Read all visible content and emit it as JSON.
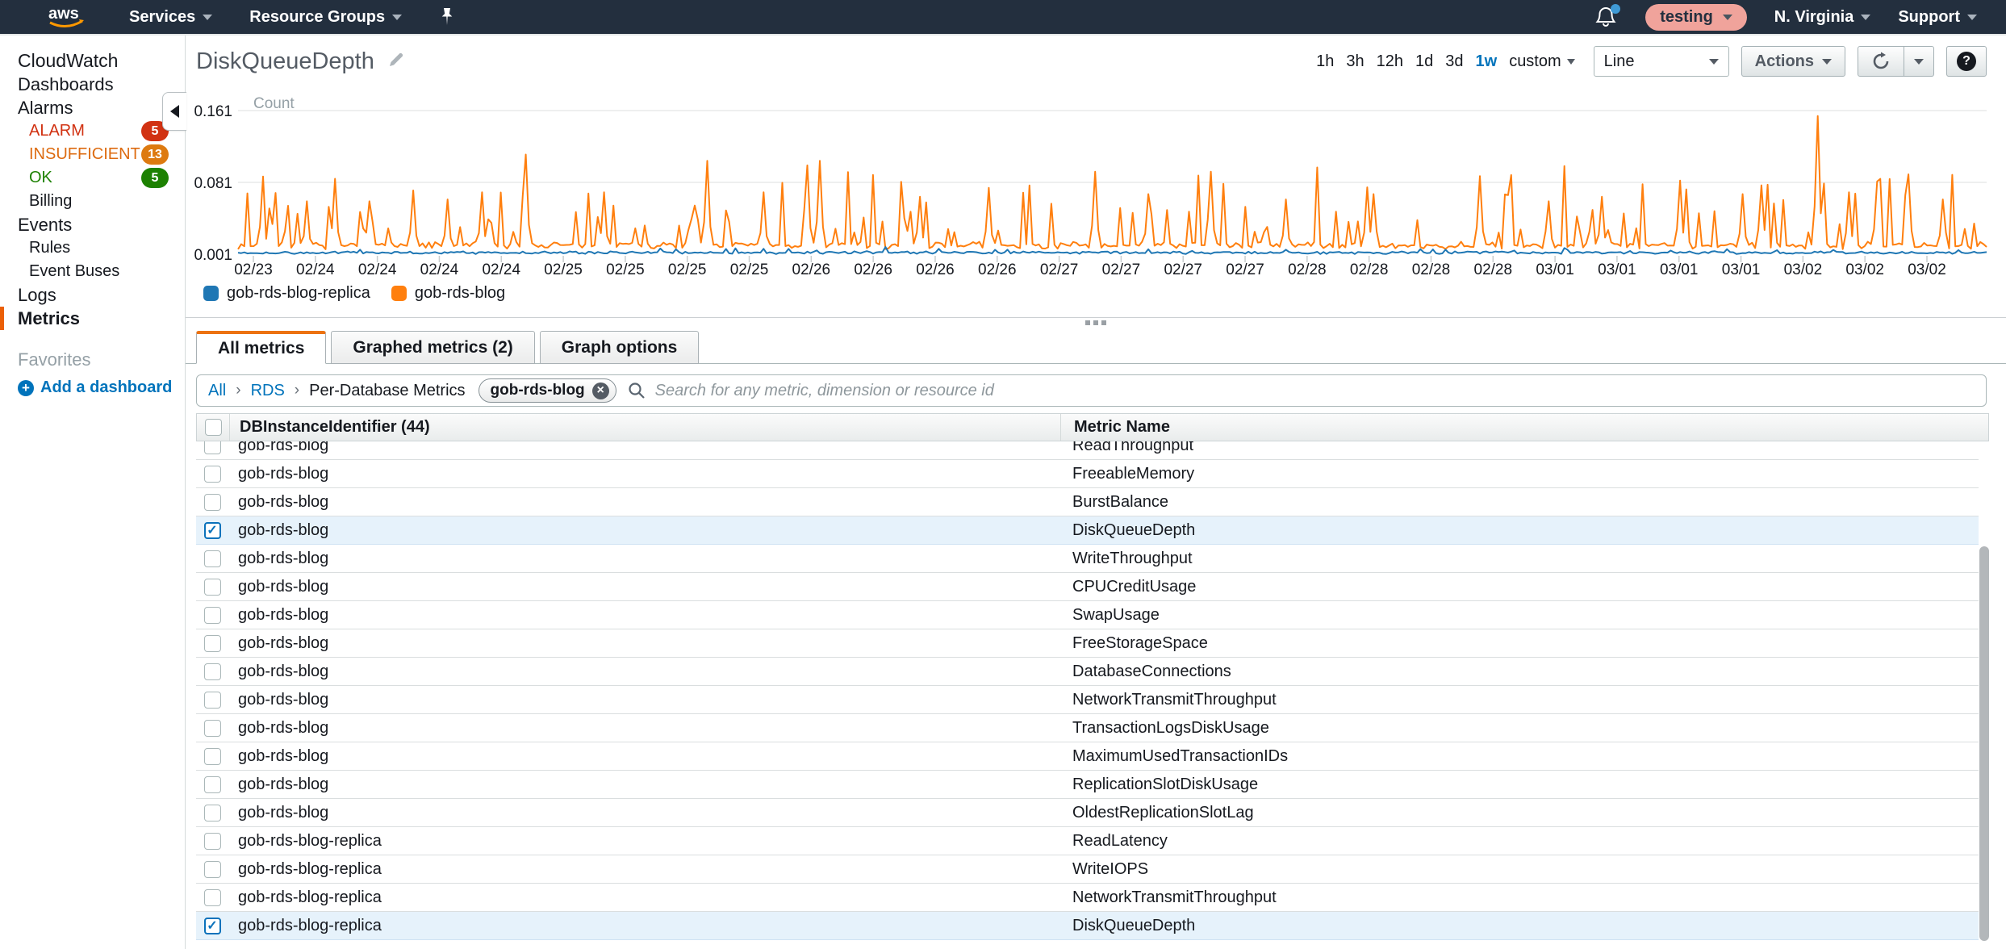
{
  "topnav": {
    "logo": "aws",
    "items": [
      {
        "label": "Services"
      },
      {
        "label": "Resource Groups"
      }
    ],
    "session_label": "testing",
    "region": "N. Virginia",
    "support_label": "Support",
    "notifications_unread": true
  },
  "sidebar": {
    "items": [
      {
        "label": "CloudWatch",
        "type": "root"
      },
      {
        "label": "Dashboards",
        "type": "top"
      },
      {
        "label": "Alarms",
        "type": "top"
      },
      {
        "label": "ALARM",
        "type": "sub",
        "color": "#d13212",
        "badge": "5",
        "badge_color": "#d13212"
      },
      {
        "label": "INSUFFICIENT",
        "type": "sub",
        "color": "#dd6b10",
        "badge": "13",
        "badge_color": "#dd7a10"
      },
      {
        "label": "OK",
        "type": "sub",
        "color": "#1d8102",
        "badge": "5",
        "badge_color": "#1d8102"
      },
      {
        "label": "Billing",
        "type": "sub"
      },
      {
        "label": "Events",
        "type": "top"
      },
      {
        "label": "Rules",
        "type": "sub"
      },
      {
        "label": "Event Buses",
        "type": "sub"
      },
      {
        "label": "Logs",
        "type": "top"
      },
      {
        "label": "Metrics",
        "type": "top",
        "selected": true
      }
    ],
    "favorites_label": "Favorites",
    "add_dashboard_label": "Add a dashboard"
  },
  "header": {
    "title": "DiskQueueDepth"
  },
  "toolbar": {
    "ranges": [
      "1h",
      "3h",
      "12h",
      "1d",
      "3d",
      "1w"
    ],
    "selected_range": "1w",
    "custom_label": "custom",
    "chart_type": "Line",
    "actions_label": "Actions"
  },
  "chart_data": {
    "type": "line",
    "title": "DiskQueueDepth",
    "unit_label": "Count",
    "ylim": [
      0.001,
      0.161
    ],
    "yticks": [
      0.001,
      0.081,
      0.161
    ],
    "grid": "horizontal",
    "legend_position": "bottom-left",
    "xticklabels": [
      "02/23",
      "02/24",
      "02/24",
      "02/24",
      "02/24",
      "02/25",
      "02/25",
      "02/25",
      "02/25",
      "02/26",
      "02/26",
      "02/26",
      "02/26",
      "02/27",
      "02/27",
      "02/27",
      "02/27",
      "02/28",
      "02/28",
      "02/28",
      "02/28",
      "03/01",
      "03/01",
      "03/01",
      "03/01",
      "03/02",
      "03/02",
      "03/02"
    ],
    "n_points": 560,
    "render_seed": 7,
    "series": [
      {
        "name": "gob-rds-blog-replica",
        "color": "#1f77b4",
        "baseline": 0.0016,
        "noise": 0.0022,
        "spike_rate": 0.05,
        "spike_min": 0.004,
        "spike_max": 0.004,
        "peaks": [
          [
            0.07,
            0.006
          ],
          [
            0.25,
            0.0065
          ],
          [
            0.3,
            0.007
          ],
          [
            0.37,
            0.009
          ],
          [
            0.4,
            0.007
          ],
          [
            0.44,
            0.006
          ],
          [
            0.52,
            0.0065
          ],
          [
            0.6,
            0.006
          ],
          [
            0.76,
            0.006
          ],
          [
            0.88,
            0.0055
          ]
        ]
      },
      {
        "name": "gob-rds-blog",
        "color": "#ff7f0e",
        "baseline": 0.009,
        "noise": 0.004,
        "spike_rate": 0.22,
        "spike_min": 0.025,
        "spike_max": 0.075,
        "peaks": [
          [
            0.018,
            0.052
          ],
          [
            0.04,
            0.06
          ],
          [
            0.056,
            0.085
          ],
          [
            0.075,
            0.06
          ],
          [
            0.1,
            0.072
          ],
          [
            0.12,
            0.062
          ],
          [
            0.14,
            0.07
          ],
          [
            0.165,
            0.112
          ],
          [
            0.21,
            0.07
          ],
          [
            0.268,
            0.105
          ],
          [
            0.3,
            0.07
          ],
          [
            0.325,
            0.1
          ],
          [
            0.333,
            0.105
          ],
          [
            0.39,
            0.065
          ],
          [
            0.43,
            0.075
          ],
          [
            0.49,
            0.093
          ],
          [
            0.52,
            0.068
          ],
          [
            0.557,
            0.093
          ],
          [
            0.6,
            0.062
          ],
          [
            0.65,
            0.068
          ],
          [
            0.71,
            0.088
          ],
          [
            0.75,
            0.06
          ],
          [
            0.78,
            0.065
          ],
          [
            0.824,
            0.083
          ],
          [
            0.86,
            0.068
          ],
          [
            0.904,
            0.155
          ],
          [
            0.922,
            0.07
          ],
          [
            0.938,
            0.082
          ],
          [
            0.955,
            0.09
          ],
          [
            0.975,
            0.062
          ]
        ]
      }
    ]
  },
  "tabs": [
    {
      "label": "All metrics",
      "active": true
    },
    {
      "label": "Graphed metrics (2)",
      "active": false
    },
    {
      "label": "Graph options",
      "active": false
    }
  ],
  "filter_bar": {
    "breadcrumbs": [
      "All",
      "RDS",
      "Per-Database Metrics"
    ],
    "chip_label": "gob-rds-blog",
    "search_placeholder": "Search for any metric, dimension or resource id"
  },
  "table": {
    "columns": [
      "DBInstanceIdentifier (44)",
      "Metric Name"
    ],
    "rows": [
      {
        "instance": "gob-rds-blog",
        "metric": "ReadThroughput",
        "checked": false
      },
      {
        "instance": "gob-rds-blog",
        "metric": "FreeableMemory",
        "checked": false
      },
      {
        "instance": "gob-rds-blog",
        "metric": "BurstBalance",
        "checked": false
      },
      {
        "instance": "gob-rds-blog",
        "metric": "DiskQueueDepth",
        "checked": true
      },
      {
        "instance": "gob-rds-blog",
        "metric": "WriteThroughput",
        "checked": false
      },
      {
        "instance": "gob-rds-blog",
        "metric": "CPUCreditUsage",
        "checked": false
      },
      {
        "instance": "gob-rds-blog",
        "metric": "SwapUsage",
        "checked": false
      },
      {
        "instance": "gob-rds-blog",
        "metric": "FreeStorageSpace",
        "checked": false
      },
      {
        "instance": "gob-rds-blog",
        "metric": "DatabaseConnections",
        "checked": false
      },
      {
        "instance": "gob-rds-blog",
        "metric": "NetworkTransmitThroughput",
        "checked": false
      },
      {
        "instance": "gob-rds-blog",
        "metric": "TransactionLogsDiskUsage",
        "checked": false
      },
      {
        "instance": "gob-rds-blog",
        "metric": "MaximumUsedTransactionIDs",
        "checked": false
      },
      {
        "instance": "gob-rds-blog",
        "metric": "ReplicationSlotDiskUsage",
        "checked": false
      },
      {
        "instance": "gob-rds-blog",
        "metric": "OldestReplicationSlotLag",
        "checked": false
      },
      {
        "instance": "gob-rds-blog-replica",
        "metric": "ReadLatency",
        "checked": false
      },
      {
        "instance": "gob-rds-blog-replica",
        "metric": "WriteIOPS",
        "checked": false
      },
      {
        "instance": "gob-rds-blog-replica",
        "metric": "NetworkTransmitThroughput",
        "checked": false
      },
      {
        "instance": "gob-rds-blog-replica",
        "metric": "DiskQueueDepth",
        "checked": true
      }
    ]
  },
  "colors": {
    "nav_bg": "#232f3e",
    "accent_orange": "#ec7211",
    "link_blue": "#0073bb",
    "series_blue": "#1f77b4",
    "series_orange": "#ff7f0e",
    "alarm_red": "#d13212",
    "insufficient_orange": "#dd6b10",
    "ok_green": "#1d8102",
    "row_highlight": "#e6f2fb",
    "session_pill": "#f0a39b",
    "aws_smile": "#ff9900"
  }
}
